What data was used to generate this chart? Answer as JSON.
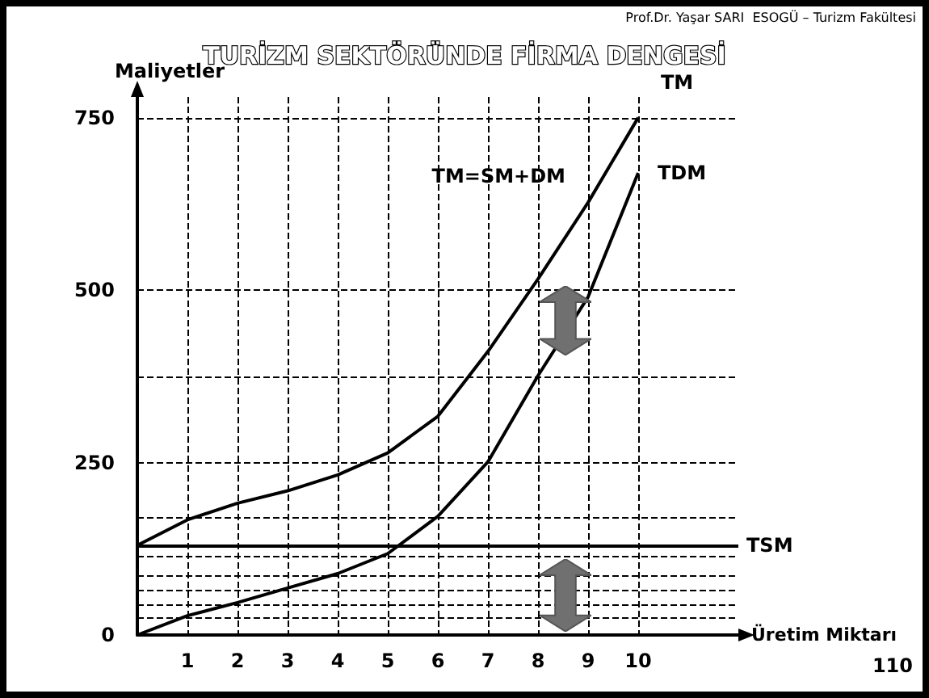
{
  "chart_data": {
    "type": "line",
    "title": "TURİZM SEKTÖRÜNDE FİRMA DENGESİ",
    "xlabel": "Üretim Miktarı",
    "ylabel": "Maliyetler",
    "x": [
      0,
      1,
      2,
      3,
      4,
      5,
      6,
      7,
      8,
      9,
      10
    ],
    "series": [
      {
        "name": "TM",
        "color": "#000000",
        "values": [
          130,
          167,
          191,
          209,
          232,
          264,
          317,
          411,
          516,
          627,
          750
        ]
      },
      {
        "name": "TDM",
        "color": "#000000",
        "values": [
          0,
          28,
          47,
          68,
          89,
          118,
          172,
          251,
          376,
          490,
          670
        ]
      }
    ],
    "xlim": [
      0,
      12
    ],
    "xticks": [
      1,
      2,
      3,
      4,
      5,
      6,
      7,
      8,
      9,
      10
    ],
    "ylim": [
      0,
      780
    ],
    "yticks": [
      0,
      {
        "value": 25,
        "label": null
      },
      {
        "value": 45,
        "label": null
      },
      {
        "value": 65,
        "label": null
      },
      {
        "value": 85,
        "label": null
      },
      {
        "value": 115,
        "label": null
      },
      {
        "value": 170,
        "label": null
      },
      250,
      {
        "value": 375,
        "label": null
      },
      500,
      750
    ],
    "grid": true,
    "marker": "none",
    "line_style": "solid",
    "legend": false,
    "ref_lines": [
      {
        "axis": "y",
        "value": 130,
        "label": "TSM",
        "color": "#000000"
      }
    ],
    "annotations": [
      "TM=SM+DM",
      "Prof.Dr. Yaşar SARI  ESOGÜ – Turizm Fakültesi",
      "110"
    ]
  }
}
